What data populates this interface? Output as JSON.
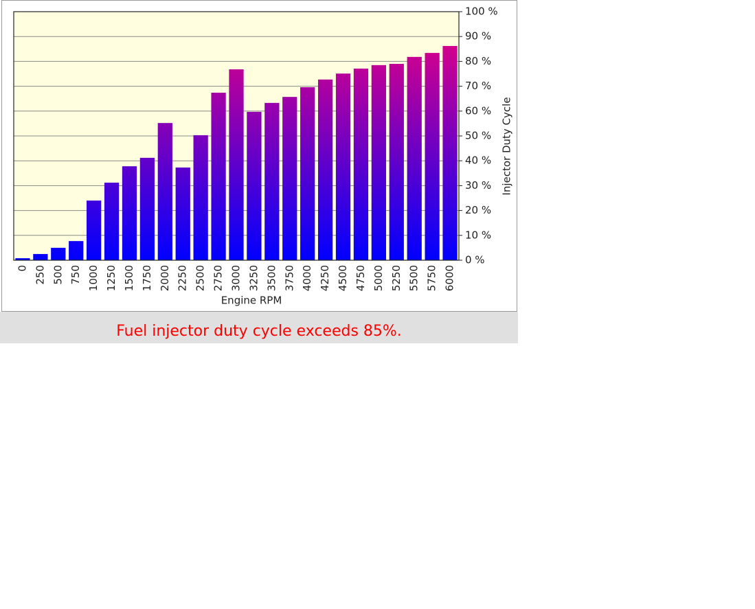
{
  "chart_data": {
    "type": "bar",
    "x_label": "Engine RPM",
    "y_label": "Injector Duty Cycle",
    "categories": [
      "0",
      "250",
      "500",
      "750",
      "1000",
      "1250",
      "1500",
      "1750",
      "2000",
      "2250",
      "2500",
      "2750",
      "3000",
      "3250",
      "3500",
      "3750",
      "4000",
      "4250",
      "4500",
      "4750",
      "5000",
      "5250",
      "5500",
      "5750",
      "6000"
    ],
    "values": [
      0.8,
      2.5,
      5,
      7.7,
      24,
      31.2,
      37.8,
      41.2,
      55.2,
      37.3,
      50.3,
      67.4,
      76.8,
      59.7,
      63.3,
      65.7,
      69.6,
      72.7,
      75.1,
      77.1,
      78.5,
      79,
      81.8,
      83.4,
      86.2
    ],
    "gradient": [
      "#0000ff",
      "#f5007a"
    ],
    "ylim": [
      0,
      100
    ],
    "yticks": [
      {
        "value": 0,
        "label": "0 %"
      },
      {
        "value": 10,
        "label": "10 %"
      },
      {
        "value": 20,
        "label": "20 %"
      },
      {
        "value": 30,
        "label": "30 %"
      },
      {
        "value": 40,
        "label": "40 %"
      },
      {
        "value": 50,
        "label": "50 %"
      },
      {
        "value": 60,
        "label": "60 %"
      },
      {
        "value": 70,
        "label": "70 %"
      },
      {
        "value": 80,
        "label": "80 %"
      },
      {
        "value": 90,
        "label": "90 %"
      },
      {
        "value": 100,
        "label": "100 %"
      }
    ],
    "y_axis_side": "right",
    "grid": true
  },
  "message": "Fuel injector duty cycle exceeds 85%."
}
